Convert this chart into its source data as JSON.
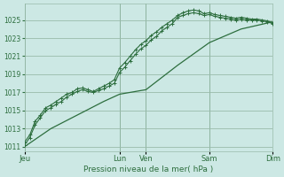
{
  "bg_color": "#cce8e4",
  "grid_color": "#99bbaa",
  "line_color": "#2d6e3e",
  "title": "Pression niveau de la mer( hPa )",
  "ylim": [
    1010.5,
    1026.8
  ],
  "yticks": [
    1011,
    1013,
    1015,
    1017,
    1019,
    1021,
    1023,
    1025
  ],
  "xtick_labels": [
    "Jeu",
    "Lun",
    "Ven",
    "Sam",
    "Dim"
  ],
  "xtick_positions": [
    0,
    18,
    23,
    35,
    47
  ],
  "total_x": 47,
  "line1_x": [
    0,
    1,
    2,
    3,
    4,
    5,
    6,
    7,
    8,
    9,
    10,
    11,
    12,
    13,
    14,
    15,
    16,
    17,
    18,
    19,
    20,
    21,
    22,
    23,
    24,
    25,
    26,
    27,
    28,
    29,
    30,
    31,
    32,
    33,
    34,
    35,
    36,
    37,
    38,
    39,
    40,
    41,
    42,
    43,
    44,
    45,
    46,
    47
  ],
  "line1_y": [
    1011.2,
    1012.0,
    1013.4,
    1014.2,
    1015.0,
    1015.3,
    1015.7,
    1016.0,
    1016.5,
    1016.8,
    1017.1,
    1017.3,
    1017.1,
    1017.0,
    1017.2,
    1017.4,
    1017.7,
    1018.0,
    1019.2,
    1019.8,
    1020.5,
    1021.2,
    1021.8,
    1022.2,
    1022.8,
    1023.2,
    1023.8,
    1024.2,
    1024.6,
    1025.3,
    1025.5,
    1025.7,
    1025.8,
    1025.7,
    1025.5,
    1025.6,
    1025.4,
    1025.3,
    1025.2,
    1025.1,
    1025.0,
    1025.1,
    1025.0,
    1025.0,
    1025.0,
    1024.9,
    1024.8,
    1024.6
  ],
  "line2_x": [
    0,
    1,
    2,
    3,
    4,
    5,
    6,
    7,
    8,
    9,
    10,
    11,
    12,
    13,
    14,
    15,
    16,
    17,
    18,
    19,
    20,
    21,
    22,
    23,
    24,
    25,
    26,
    27,
    28,
    29,
    30,
    31,
    32,
    33,
    34,
    35,
    36,
    37,
    38,
    39,
    40,
    41,
    42,
    43,
    44,
    45,
    46,
    47
  ],
  "line2_y": [
    1011.5,
    1012.3,
    1013.8,
    1014.5,
    1015.3,
    1015.6,
    1016.0,
    1016.4,
    1016.8,
    1017.0,
    1017.4,
    1017.5,
    1017.3,
    1017.1,
    1017.4,
    1017.7,
    1018.0,
    1018.4,
    1019.7,
    1020.3,
    1021.0,
    1021.7,
    1022.3,
    1022.7,
    1023.3,
    1023.7,
    1024.2,
    1024.6,
    1025.0,
    1025.5,
    1025.8,
    1026.0,
    1026.1,
    1026.0,
    1025.7,
    1025.8,
    1025.6,
    1025.5,
    1025.4,
    1025.3,
    1025.2,
    1025.3,
    1025.2,
    1025.1,
    1025.1,
    1025.0,
    1024.9,
    1024.7
  ],
  "line3_x": [
    0,
    5,
    10,
    15,
    18,
    23,
    29,
    35,
    41,
    47
  ],
  "line3_y": [
    1011.0,
    1013.0,
    1014.5,
    1016.0,
    1016.8,
    1017.3,
    1020.0,
    1022.5,
    1024.0,
    1024.8
  ]
}
